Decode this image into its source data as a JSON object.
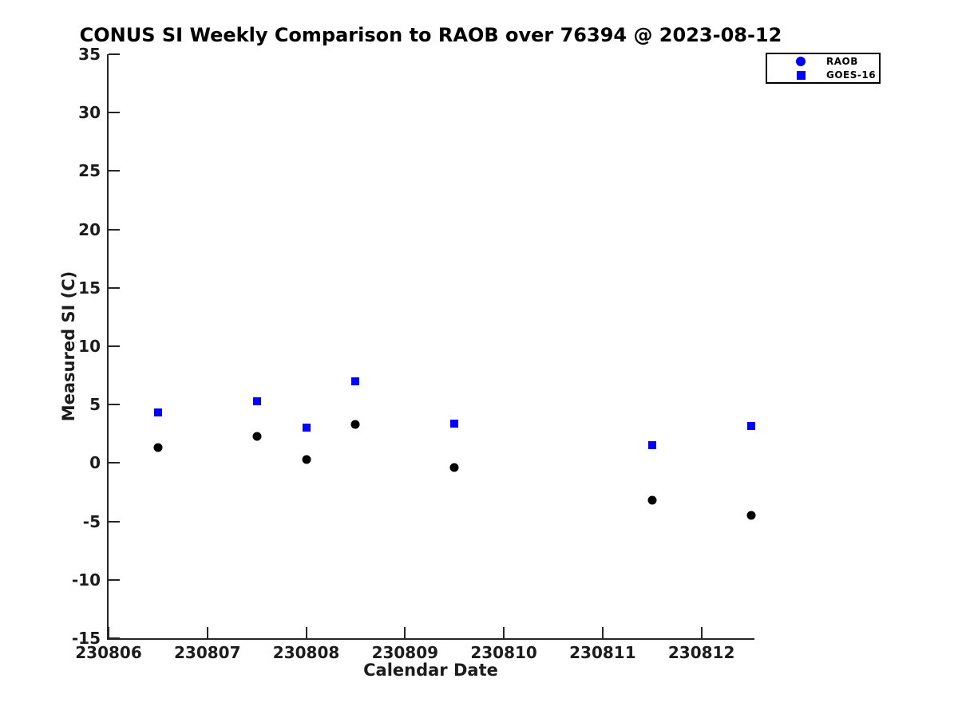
{
  "chart_data": {
    "type": "scatter",
    "title": "CONUS SI Weekly Comparison to RAOB over 76394 @ 2023-08-12",
    "xlabel": "Calendar Date",
    "ylabel": "Measured SI (C)",
    "xlim": [
      230806,
      230812.52
    ],
    "ylim": [
      -15,
      35
    ],
    "x_ticks": [
      230806,
      230807,
      230808,
      230809,
      230810,
      230811,
      230812
    ],
    "y_ticks": [
      -15,
      -10,
      -5,
      0,
      5,
      10,
      15,
      20,
      25,
      30,
      35
    ],
    "grid": false,
    "legend_position": "top-right-outside",
    "axis_color": "#262626",
    "series": [
      {
        "name": "RAOB",
        "marker": "circle",
        "marker_color": "#000000",
        "legend_marker_color": "#0000ff",
        "points": [
          {
            "x": 230806.5,
            "y": 1.3
          },
          {
            "x": 230807.5,
            "y": 2.3
          },
          {
            "x": 230808.0,
            "y": 0.3
          },
          {
            "x": 230808.5,
            "y": 3.3
          },
          {
            "x": 230809.5,
            "y": -0.4
          },
          {
            "x": 230811.5,
            "y": -3.2
          },
          {
            "x": 230812.5,
            "y": -4.5
          }
        ]
      },
      {
        "name": "GOES-16",
        "marker": "square",
        "marker_color": "#0000ff",
        "legend_marker_color": "#0000ff",
        "points": [
          {
            "x": 230806.5,
            "y": 4.3
          },
          {
            "x": 230807.5,
            "y": 5.3
          },
          {
            "x": 230808.0,
            "y": 3.0
          },
          {
            "x": 230808.5,
            "y": 7.0
          },
          {
            "x": 230809.5,
            "y": 3.4
          },
          {
            "x": 230811.5,
            "y": 1.5
          },
          {
            "x": 230812.5,
            "y": 3.2
          }
        ]
      }
    ]
  }
}
